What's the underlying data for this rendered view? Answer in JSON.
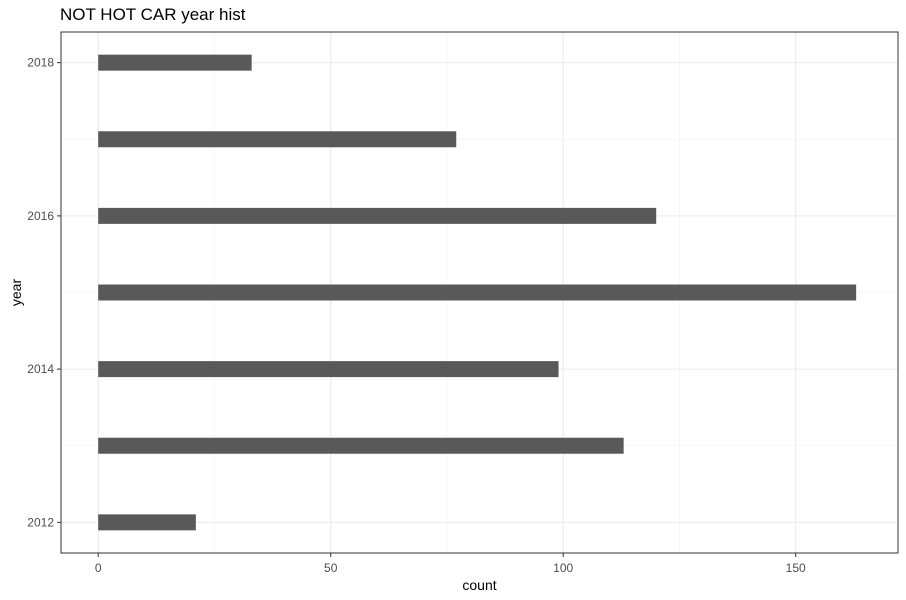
{
  "chart_data": {
    "type": "bar",
    "orientation": "horizontal",
    "title": "NOT HOT CAR year hist",
    "xlabel": "count",
    "ylabel": "year",
    "y": [
      2012,
      2013,
      2014,
      2015,
      2016,
      2017,
      2018
    ],
    "values": [
      21,
      113,
      99,
      163,
      120,
      77,
      33
    ],
    "xlim": [
      -8,
      172
    ],
    "ylim": [
      2011.6,
      2018.4
    ],
    "xticks": [
      0,
      50,
      100,
      150
    ],
    "yticks": [
      2012,
      2014,
      2016,
      2018
    ],
    "bar_color": "#595959",
    "grid": true,
    "theme": "bw"
  }
}
